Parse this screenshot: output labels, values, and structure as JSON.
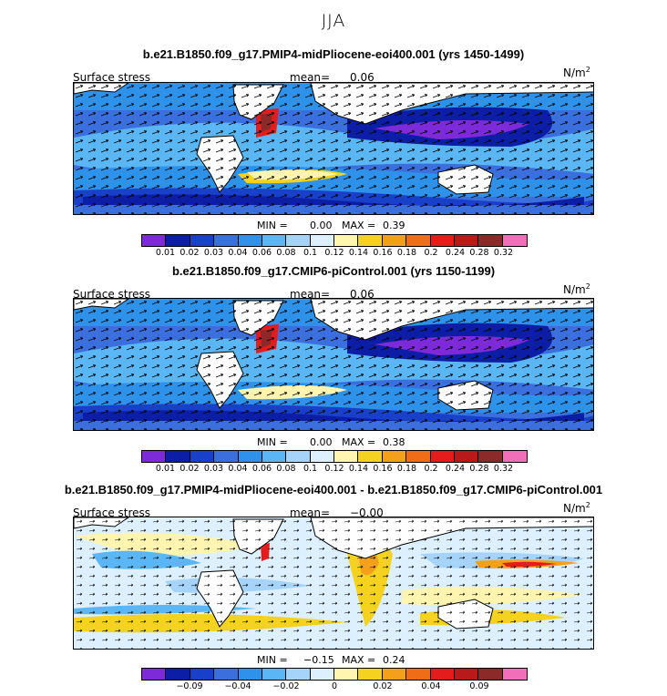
{
  "figure_title": "JJA",
  "panels": [
    {
      "title": "b.e21.B1850.f09_g17.PMIP4-midPliocene-eoi400.001 (yrs 1450-1499)",
      "left_label": "Surface stress",
      "mean_label": "mean=",
      "mean_value": "0.06",
      "units": "N/m",
      "units_exp": "2",
      "min_label": "MIN =",
      "min_value": "0.00",
      "max_label": "MAX =",
      "max_value": "0.39",
      "colorbar_labels": [
        "0.01",
        "0.02",
        "0.03",
        "0.04",
        "0.06",
        "0.08",
        "0.1",
        "0.12",
        "0.14",
        "0.16",
        "0.18",
        "0.2",
        "0.24",
        "0.28",
        "0.32"
      ]
    },
    {
      "title": "b.e21.B1850.f09_g17.CMIP6-piControl.001 (yrs 1150-1199)",
      "left_label": "Surface stress",
      "mean_label": "mean=",
      "mean_value": "0.06",
      "units": "N/m",
      "units_exp": "2",
      "min_label": "MIN =",
      "min_value": "0.00",
      "max_label": "MAX =",
      "max_value": "0.38",
      "colorbar_labels": [
        "0.01",
        "0.02",
        "0.03",
        "0.04",
        "0.06",
        "0.08",
        "0.1",
        "0.12",
        "0.14",
        "0.16",
        "0.18",
        "0.2",
        "0.24",
        "0.28",
        "0.32"
      ]
    },
    {
      "title": "b.e21.B1850.f09_g17.PMIP4-midPliocene-eoi400.001 - b.e21.B1850.f09_g17.CMIP6-piControl.001",
      "left_label": "Surface stress",
      "mean_label": "mean=",
      "mean_value": "−0.00",
      "units": "N/m",
      "units_exp": "2",
      "min_label": "MIN =",
      "min_value": "−0.15",
      "max_label": "MAX =",
      "max_value": "0.24",
      "colorbar_labels": [
        "−0.09",
        "−0.04",
        "−0.02",
        "0",
        "0.02",
        "0.04",
        "0.09"
      ]
    }
  ],
  "colors": {
    "abs_scale": [
      "#7d2bd8",
      "#0c1ea6",
      "#1840c8",
      "#3c6fde",
      "#2f92ea",
      "#5ab6f4",
      "#a6d3fa",
      "#dcf0ff",
      "#fff4b0",
      "#f5d21f",
      "#f4a01a",
      "#ef6d17",
      "#e41c1c",
      "#b81a1a",
      "#8c2a2a",
      "#f06fb8"
    ],
    "diff_scale": [
      "#7d2bd8",
      "#0c1ea6",
      "#1840c8",
      "#3c6fde",
      "#2f92ea",
      "#5ab6f4",
      "#a6d3fa",
      "#dcf0ff",
      "#fff4b0",
      "#f5d21f",
      "#f4a01a",
      "#ef6d17",
      "#e41c1c",
      "#b81a1a",
      "#8c2a2a",
      "#f06fb8"
    ]
  }
}
